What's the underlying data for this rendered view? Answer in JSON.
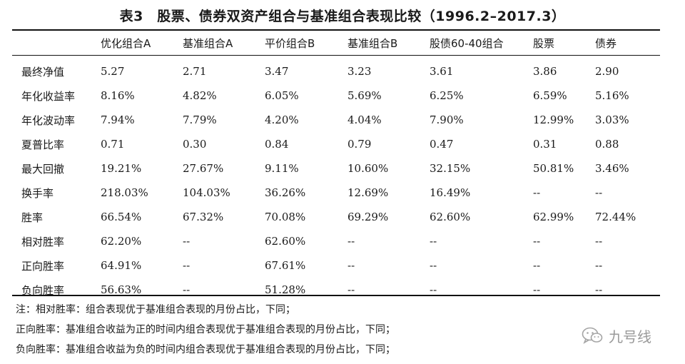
{
  "title": "表3　股票、债券双资产组合与基准组合表现比较（1996.2–2017.3）",
  "table": {
    "columns": [
      "",
      "优化组合A",
      "基准组合A",
      "平价组合B",
      "基准组合B",
      "股债60-40组合",
      "股票",
      "债券"
    ],
    "rows": [
      {
        "label": "最终净值",
        "values": [
          "5.27",
          "2.71",
          "3.47",
          "3.23",
          "3.61",
          "3.86",
          "2.90"
        ]
      },
      {
        "label": "年化收益率",
        "values": [
          "8.16%",
          "4.82%",
          "6.05%",
          "5.69%",
          "6.25%",
          "6.59%",
          "5.16%"
        ]
      },
      {
        "label": "年化波动率",
        "values": [
          "7.94%",
          "7.79%",
          "4.20%",
          "4.04%",
          "7.90%",
          "12.99%",
          "3.03%"
        ]
      },
      {
        "label": "夏普比率",
        "values": [
          "0.71",
          "0.30",
          "0.84",
          "0.79",
          "0.47",
          "0.31",
          "0.88"
        ]
      },
      {
        "label": "最大回撤",
        "values": [
          "19.21%",
          "27.67%",
          "9.11%",
          "10.60%",
          "32.15%",
          "50.81%",
          "3.46%"
        ]
      },
      {
        "label": "换手率",
        "values": [
          "218.03%",
          "104.03%",
          "36.26%",
          "12.69%",
          "16.49%",
          "--",
          "--"
        ]
      },
      {
        "label": "胜率",
        "values": [
          "66.54%",
          "67.32%",
          "70.08%",
          "69.29%",
          "62.60%",
          "62.99%",
          "72.44%"
        ]
      },
      {
        "label": "相对胜率",
        "values": [
          "62.20%",
          "--",
          "62.60%",
          "--",
          "--",
          "--",
          "--"
        ]
      },
      {
        "label": "正向胜率",
        "values": [
          "64.91%",
          "--",
          "67.61%",
          "--",
          "--",
          "--",
          "--"
        ]
      },
      {
        "label": "负向胜率",
        "values": [
          "56.63%",
          "--",
          "51.28%",
          "--",
          "--",
          "--",
          "--"
        ]
      }
    ]
  },
  "notes": [
    "注：相对胜率：组合表现优于基准组合表现的月份占比，下同；",
    "正向胜率：基准组合收益为正的时间内组合表现优于基准组合表现的月份占比，下同；",
    "负向胜率：基准组合收益为负的时间内组合表现优于基准组合表现的月份占比，下同；"
  ],
  "watermark": {
    "text": "九号线",
    "icon": "wechat-icon"
  }
}
